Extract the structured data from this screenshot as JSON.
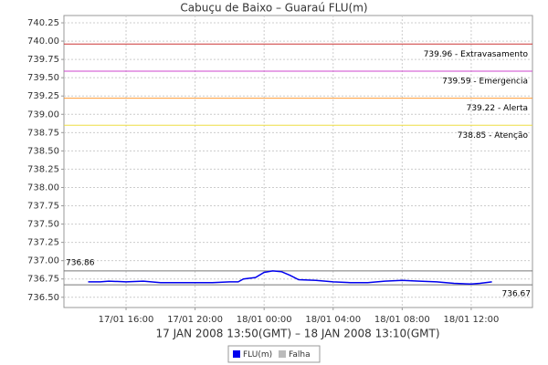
{
  "chart_data": {
    "type": "line",
    "title": "Cabuçu de Baixo – Guaraú FLU(m)",
    "x_label": "17 JAN 2008 13:50(GMT) – 18 JAN 2008 13:10(GMT)",
    "x": [
      13.8,
      14.5,
      15,
      16,
      17,
      18,
      19,
      20,
      21,
      22,
      22.5,
      22.8,
      23.5,
      24,
      24.5,
      25,
      25.5,
      26,
      27,
      28,
      29,
      30,
      31,
      32,
      33,
      34,
      35,
      36,
      36.5,
      37.2
    ],
    "series": [
      {
        "name": "FLU(m)",
        "color": "#0000ee",
        "values": [
          736.71,
          736.71,
          736.72,
          736.71,
          736.72,
          736.7,
          736.7,
          736.7,
          736.7,
          736.71,
          736.71,
          736.75,
          736.77,
          736.84,
          736.86,
          736.85,
          736.8,
          736.74,
          736.73,
          736.71,
          736.7,
          736.7,
          736.72,
          736.73,
          736.72,
          736.71,
          736.69,
          736.68,
          736.69,
          736.71
        ]
      },
      {
        "name": "Falha",
        "color": "#bbbbbb",
        "values": [
          null,
          null,
          null,
          null,
          null,
          null,
          null,
          null,
          null,
          null,
          null,
          null,
          null,
          null,
          null,
          null,
          null,
          null,
          null,
          null,
          null,
          null,
          null,
          null,
          null,
          null,
          null,
          null,
          null,
          null
        ]
      }
    ],
    "thresholds": [
      {
        "value": 739.96,
        "label": "739.96 - Extravasamento",
        "color": "#cc3333"
      },
      {
        "value": 739.59,
        "label": "739.59 - Emergencia",
        "color": "#cc44cc"
      },
      {
        "value": 739.22,
        "label": "739.22 - Alerta",
        "color": "#ff9933"
      },
      {
        "value": 738.85,
        "label": "738.85 - Atenção",
        "color": "#eedd44"
      }
    ],
    "max_marker": {
      "value": 736.86,
      "label": "736.86"
    },
    "min_marker": {
      "value": 736.67,
      "label": "736.67"
    },
    "xlim": [
      12.4,
      39.55
    ],
    "ylim": [
      736.36,
      740.35
    ],
    "xticks": [
      {
        "value": 16,
        "label": "17/01 16:00"
      },
      {
        "value": 20,
        "label": "17/01 20:00"
      },
      {
        "value": 24,
        "label": "18/01 00:00"
      },
      {
        "value": 28,
        "label": "18/01 04:00"
      },
      {
        "value": 32,
        "label": "18/01 08:00"
      },
      {
        "value": 36,
        "label": "18/01 12:00"
      }
    ],
    "yticks": [
      {
        "value": 736.5,
        "label": "736.50"
      },
      736.75,
      {
        "value": 737,
        "label": "737.00"
      },
      737.25,
      {
        "value": 737.5,
        "label": "737.50"
      },
      737.75,
      {
        "value": 738,
        "label": "738.00"
      },
      738.25,
      {
        "value": 738.5,
        "label": "738.50"
      },
      738.75,
      {
        "value": 739,
        "label": "739.00"
      },
      739.25,
      {
        "value": 739.5,
        "label": "739.50"
      },
      739.75,
      {
        "value": 740,
        "label": "740.00"
      },
      740.25
    ],
    "grid": true
  }
}
